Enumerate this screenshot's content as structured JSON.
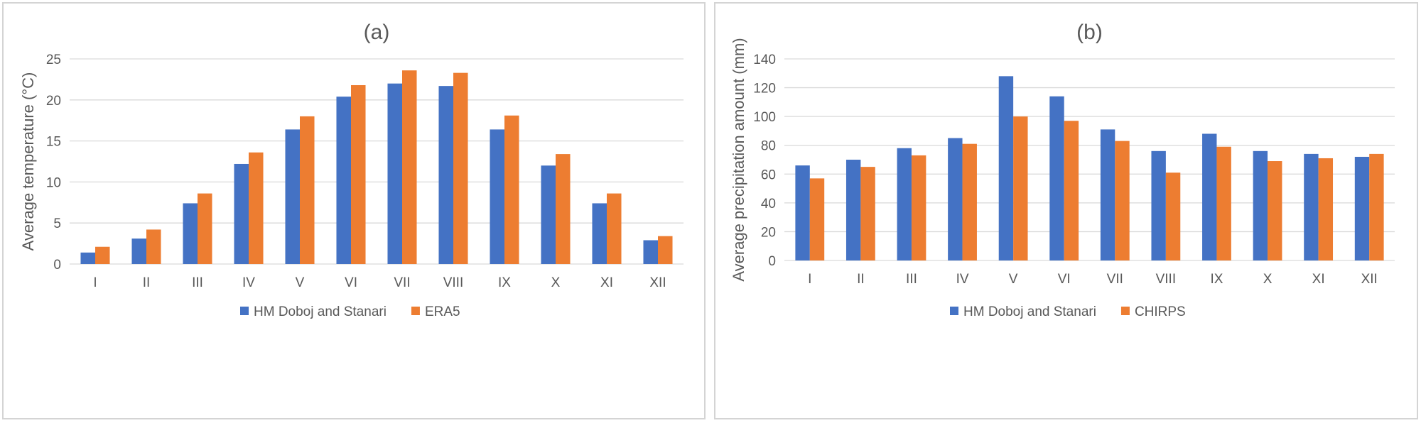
{
  "colors": {
    "blue": "#4472c4",
    "orange": "#ed7d31"
  },
  "chart_data": [
    {
      "type": "bar",
      "title": "(a)",
      "xlabel": "",
      "ylabel": "Average temperature (°C)",
      "categories": [
        "I",
        "II",
        "III",
        "IV",
        "V",
        "VI",
        "VII",
        "VIII",
        "IX",
        "X",
        "XI",
        "XII"
      ],
      "ylim": [
        0,
        25
      ],
      "yticks": [
        0,
        5,
        10,
        15,
        20,
        25
      ],
      "grid": true,
      "legend": "bottom",
      "series": [
        {
          "name": "HM Doboj and Stanari",
          "color": "#4472c4",
          "values": [
            1.4,
            3.1,
            7.4,
            12.2,
            16.4,
            20.4,
            22.0,
            21.7,
            16.4,
            12.0,
            7.4,
            2.9
          ]
        },
        {
          "name": "ERA5",
          "color": "#ed7d31",
          "values": [
            2.1,
            4.2,
            8.6,
            13.6,
            18.0,
            21.8,
            23.6,
            23.3,
            18.1,
            13.4,
            8.6,
            3.4
          ]
        }
      ]
    },
    {
      "type": "bar",
      "title": "(b)",
      "xlabel": "",
      "ylabel": "Average precipitation amount (mm)",
      "categories": [
        "I",
        "II",
        "III",
        "IV",
        "V",
        "VI",
        "VII",
        "VIII",
        "IX",
        "X",
        "XI",
        "XII"
      ],
      "ylim": [
        0,
        140
      ],
      "yticks": [
        0,
        20,
        40,
        60,
        80,
        100,
        120,
        140
      ],
      "grid": true,
      "legend": "bottom",
      "series": [
        {
          "name": "HM Doboj and Stanari",
          "color": "#4472c4",
          "values": [
            66,
            70,
            78,
            85,
            128,
            114,
            91,
            76,
            88,
            76,
            74,
            72
          ]
        },
        {
          "name": "CHIRPS",
          "color": "#ed7d31",
          "values": [
            57,
            65,
            73,
            81,
            100,
            97,
            83,
            61,
            79,
            69,
            71,
            74
          ]
        }
      ]
    }
  ]
}
